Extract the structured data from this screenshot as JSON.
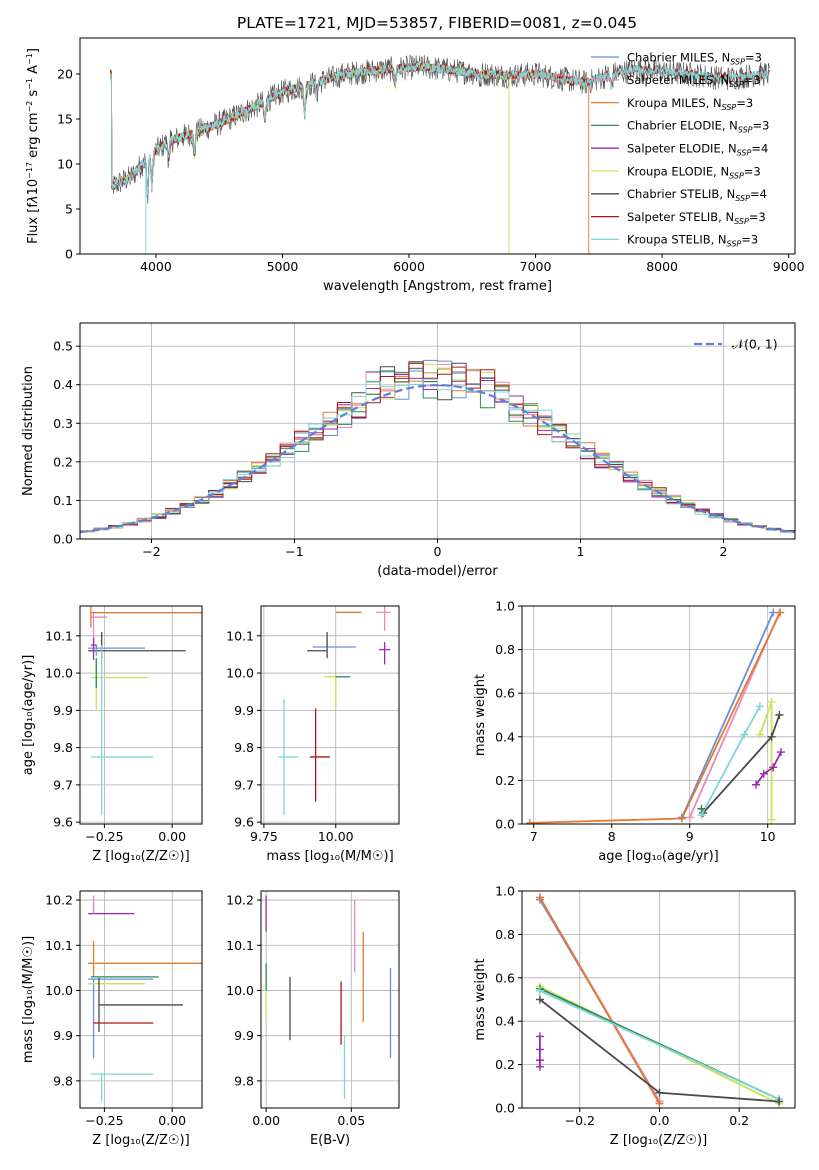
{
  "title": "PLATE=1721, MJD=53857, FIBERID=0081, z=0.045",
  "colors": {
    "Chabrier MILES": "#6a8fd6",
    "Salpeter MILES": "#e98ab9",
    "Kroupa MILES": "#e07b30",
    "Chabrier ELODIE": "#2f8a5a",
    "Salpeter ELODIE": "#9a2bb0",
    "Kroupa ELODIE": "#c9e35a",
    "Chabrier STELIB": "#4a4a4a",
    "Salpeter STELIB": "#b01515",
    "Kroupa STELIB": "#7fd6d6"
  },
  "chart_data": [
    {
      "id": "spectrum",
      "type": "line",
      "xlabel": "wavelength [Angstrom, rest frame]",
      "ylabel_html": "Flux [f<tspan font-style='italic'>λ</tspan>10<tspan dy='-5' font-size='8'>−17</tspan><tspan dy='5'> erg cm</tspan><tspan dy='-5' font-size='8'>−2</tspan><tspan dy='5'> s</tspan><tspan dy='-5' font-size='8'>−1</tspan><tspan dy='5'> A</tspan><tspan dy='-5' font-size='8'>−1</tspan><tspan dy='5'>]</tspan>",
      "xlim": [
        3400,
        9050
      ],
      "ylim": [
        0,
        24
      ],
      "xticks": [
        4000,
        5000,
        6000,
        7000,
        8000,
        9000
      ],
      "yticks": [
        0,
        5,
        10,
        15,
        20
      ],
      "series": [
        {
          "name": "Chabrier MILES",
          "label": "Chabrier MILES, N",
          "nssp": "3"
        },
        {
          "name": "Salpeter MILES",
          "label": "Salpeter MILES, N",
          "nssp": "3"
        },
        {
          "name": "Kroupa MILES",
          "label": "Kroupa MILES, N",
          "nssp": "3"
        },
        {
          "name": "Chabrier ELODIE",
          "label": "Chabrier ELODIE, N",
          "nssp": "3"
        },
        {
          "name": "Salpeter ELODIE",
          "label": "Salpeter ELODIE, N",
          "nssp": "4"
        },
        {
          "name": "Kroupa ELODIE",
          "label": "Kroupa ELODIE, N",
          "nssp": "3"
        },
        {
          "name": "Chabrier STELIB",
          "label": "Chabrier STELIB, N",
          "nssp": "4"
        },
        {
          "name": "Salpeter STELIB",
          "label": "Salpeter STELIB, N",
          "nssp": "3"
        },
        {
          "name": "Kroupa STELIB",
          "label": "Kroupa STELIB, N",
          "nssp": "3"
        }
      ],
      "continuum": [
        [
          3650,
          7.5
        ],
        [
          3800,
          8.5
        ],
        [
          3950,
          11
        ],
        [
          4100,
          12.5
        ],
        [
          4300,
          13.5
        ],
        [
          4500,
          14.5
        ],
        [
          4800,
          16.5
        ],
        [
          5000,
          18
        ],
        [
          5200,
          18.8
        ],
        [
          5500,
          20
        ],
        [
          5800,
          20.5
        ],
        [
          6100,
          20.8
        ],
        [
          6400,
          20.3
        ],
        [
          6600,
          20
        ],
        [
          6800,
          19.8
        ],
        [
          7000,
          20
        ],
        [
          7200,
          19.5
        ],
        [
          7400,
          19
        ],
        [
          7600,
          20
        ],
        [
          7800,
          20.5
        ],
        [
          8200,
          20
        ],
        [
          8500,
          19.5
        ],
        [
          8800,
          20
        ]
      ],
      "drops": [
        {
          "series": "Kroupa MILES",
          "x": 7420
        },
        {
          "series": "Kroupa ELODIE",
          "x": 6790
        },
        {
          "series": "Kroupa STELIB",
          "x": 3920
        }
      ]
    },
    {
      "id": "residuals",
      "type": "histogram",
      "xlabel": "(data-model)/error",
      "ylabel": "Normed distribution",
      "xlim": [
        -2.5,
        2.5
      ],
      "ylim": [
        0,
        0.56
      ],
      "xticks": [
        -2,
        -1,
        0,
        1,
        2
      ],
      "yticks": [
        0.0,
        0.1,
        0.2,
        0.3,
        0.4,
        0.5
      ],
      "legend": "𝒩(0, 1)",
      "bin_width": 0.1,
      "reference": {
        "name": "𝒩(0, 1)",
        "mu": 0,
        "sigma": 1
      }
    },
    {
      "id": "age-vs-Z",
      "type": "scatter",
      "xlabel": "Z [log₁₀(Z/Z☉)]",
      "ylabel": "age  [log₁₀(age/yr)]",
      "xlim": [
        -0.34,
        0.11
      ],
      "ylim": [
        9.595,
        10.18
      ],
      "xticks": [
        -0.25,
        0.0
      ],
      "yticks": [
        9.6,
        9.7,
        9.8,
        9.9,
        10.0,
        10.1
      ],
      "points": [
        {
          "series": "Kroupa MILES",
          "x": -0.3,
          "y": 10.162,
          "xerr": [
            0.0,
            0.41
          ],
          "yerr": [
            0.04,
            0.02
          ]
        },
        {
          "series": "Salpeter MILES",
          "x": -0.29,
          "y": 10.15,
          "xerr": [
            0.01,
            0.05
          ],
          "yerr": [
            0.07,
            0.01
          ]
        },
        {
          "series": "Chabrier STELIB",
          "x": -0.26,
          "y": 10.06,
          "xerr": [
            0.05,
            0.31
          ],
          "yerr": [
            0.02,
            0.05
          ]
        },
        {
          "series": "Chabrier MILES",
          "x": -0.28,
          "y": 10.067,
          "xerr": [
            0.03,
            0.18
          ],
          "yerr": [
            0.02,
            0.01
          ]
        },
        {
          "series": "Salpeter ELODIE",
          "x": -0.29,
          "y": 10.075,
          "xerr": [
            0.01,
            0.01
          ],
          "yerr": [
            0.04,
            0.02
          ]
        },
        {
          "series": "Kroupa ELODIE",
          "x": -0.28,
          "y": 9.988,
          "xerr": [
            0.02,
            0.19
          ],
          "yerr": [
            0.09,
            0.04
          ]
        },
        {
          "series": "Chabrier ELODIE",
          "x": -0.28,
          "y": 10.0,
          "xerr": [
            0.0,
            0.0
          ],
          "yerr": [
            0.04,
            0.04
          ]
        },
        {
          "series": "Kroupa STELIB",
          "x": -0.26,
          "y": 9.775,
          "xerr": [
            0.04,
            0.19
          ],
          "yerr": [
            0.155,
            0.3
          ]
        },
        {
          "series": "Salpeter STELIB",
          "x": -0.27,
          "y": 9.775,
          "xerr": [
            0.0,
            0.0
          ],
          "yerr": [
            0.0,
            0.0
          ]
        }
      ]
    },
    {
      "id": "age-vs-mass",
      "type": "scatter",
      "xlabel": "mass [log₁₀(M/M☉)]",
      "ylabel": "",
      "xlim": [
        9.74,
        10.22
      ],
      "ylim": [
        9.595,
        10.18
      ],
      "xticks": [
        9.75,
        10.0
      ],
      "yticks": [
        9.6,
        9.7,
        9.8,
        9.9,
        10.0,
        10.1
      ],
      "points": [
        {
          "series": "Kroupa MILES",
          "x": 10.06,
          "y": 10.163,
          "xerr": [
            0.06,
            0.03
          ],
          "yerr": [
            0.0,
            0.0
          ]
        },
        {
          "series": "Salpeter MILES",
          "x": 10.17,
          "y": 10.163,
          "xerr": [
            0.03,
            0.02
          ],
          "yerr": [
            0.05,
            0.02
          ]
        },
        {
          "series": "Chabrier MILES",
          "x": 10.03,
          "y": 10.07,
          "xerr": [
            0.11,
            0.04
          ],
          "yerr": [
            0.0,
            0.0
          ]
        },
        {
          "series": "Chabrier STELIB",
          "x": 9.97,
          "y": 10.06,
          "xerr": [
            0.07,
            0.0
          ],
          "yerr": [
            0.02,
            0.05
          ]
        },
        {
          "series": "Salpeter ELODIE",
          "x": 10.17,
          "y": 10.063,
          "xerr": [
            0.02,
            0.02
          ],
          "yerr": [
            0.04,
            0.02
          ]
        },
        {
          "series": "Kroupa ELODIE",
          "x": 10.0,
          "y": 9.99,
          "xerr": [
            0.04,
            0.02
          ],
          "yerr": [
            0.09,
            0.0
          ]
        },
        {
          "series": "Chabrier ELODIE",
          "x": 10.02,
          "y": 9.99,
          "xerr": [
            0.02,
            0.03
          ],
          "yerr": [
            0.0,
            0.0
          ]
        },
        {
          "series": "Kroupa STELIB",
          "x": 9.82,
          "y": 9.775,
          "xerr": [
            0.02,
            0.05
          ],
          "yerr": [
            0.155,
            0.155
          ]
        },
        {
          "series": "Salpeter STELIB",
          "x": 9.93,
          "y": 9.775,
          "xerr": [
            0.02,
            0.05
          ],
          "yerr": [
            0.12,
            0.13
          ]
        }
      ]
    },
    {
      "id": "weight-vs-age",
      "type": "line",
      "xlabel": "age  [log₁₀(age/yr)]",
      "ylabel": "mass weight",
      "xlim": [
        6.85,
        10.35
      ],
      "ylim": [
        0,
        1.0
      ],
      "xticks": [
        7,
        8,
        9,
        10
      ],
      "yticks": [
        0.0,
        0.2,
        0.4,
        0.6,
        0.8,
        1.0
      ],
      "series": [
        {
          "series": "Chabrier MILES",
          "x": [
            8.9,
            10.07
          ],
          "y": [
            0.03,
            0.97
          ]
        },
        {
          "series": "Salpeter MILES",
          "x": [
            9.0,
            10.15
          ],
          "y": [
            0.03,
            0.97
          ]
        },
        {
          "series": "Kroupa MILES",
          "x": [
            6.95,
            8.9,
            10.16
          ],
          "y": [
            0.005,
            0.025,
            0.97
          ]
        },
        {
          "series": "Kroupa ELODIE",
          "x": [
            9.9,
            10.05,
            10.05
          ],
          "y": [
            0.41,
            0.56,
            0.02
          ]
        },
        {
          "series": "Salpeter ELODIE",
          "x": [
            9.85,
            9.95,
            10.07,
            10.17
          ],
          "y": [
            0.18,
            0.23,
            0.26,
            0.33
          ]
        },
        {
          "series": "Chabrier STELIB",
          "x": [
            9.17,
            10.05,
            10.15
          ],
          "y": [
            0.05,
            0.4,
            0.5
          ]
        },
        {
          "series": "Kroupa STELIB",
          "x": [
            9.15,
            9.7,
            9.9
          ],
          "y": [
            0.04,
            0.41,
            0.54
          ]
        },
        {
          "series": "Chabrier ELODIE",
          "x": [
            9.15
          ],
          "y": [
            0.07
          ]
        }
      ]
    },
    {
      "id": "mass-vs-Z",
      "type": "scatter",
      "xlabel": "Z [log₁₀(Z/Z☉)]",
      "ylabel": "mass [log₁₀(M/M☉)]",
      "xlim": [
        -0.34,
        0.11
      ],
      "ylim": [
        9.74,
        10.22
      ],
      "xticks": [
        -0.25,
        0.0
      ],
      "yticks": [
        9.8,
        9.9,
        10.0,
        10.1,
        10.2
      ],
      "points": [
        {
          "series": "Salpeter ELODIE",
          "x": -0.29,
          "y": 10.17,
          "xerr": [
            0.02,
            0.15
          ],
          "yerr": [
            0.0,
            0.02
          ]
        },
        {
          "series": "Salpeter MILES",
          "x": -0.29,
          "y": 10.17,
          "xerr": [
            0.0,
            0.0
          ],
          "yerr": [
            0.0,
            0.04
          ]
        },
        {
          "series": "Kroupa MILES",
          "x": -0.29,
          "y": 10.06,
          "xerr": [
            0.02,
            0.41
          ],
          "yerr": [
            0.03,
            0.05
          ]
        },
        {
          "series": "Chabrier ELODIE",
          "x": -0.3,
          "y": 10.03,
          "xerr": [
            0.0,
            0.25
          ],
          "yerr": [
            0.0,
            0.0
          ]
        },
        {
          "series": "Chabrier MILES",
          "x": -0.29,
          "y": 10.025,
          "xerr": [
            0.02,
            0.22
          ],
          "yerr": [
            0.175,
            0.0
          ]
        },
        {
          "series": "Kroupa ELODIE",
          "x": -0.29,
          "y": 10.015,
          "xerr": [
            0.02,
            0.19
          ],
          "yerr": [
            0.0,
            0.0
          ]
        },
        {
          "series": "Chabrier STELIB",
          "x": -0.27,
          "y": 9.968,
          "xerr": [
            0.0,
            0.31
          ],
          "yerr": [
            0.06,
            0.06
          ]
        },
        {
          "series": "Salpeter STELIB",
          "x": -0.29,
          "y": 9.928,
          "xerr": [
            0.0,
            0.22
          ],
          "yerr": [
            0.0,
            0.0
          ]
        },
        {
          "series": "Kroupa STELIB",
          "x": -0.26,
          "y": 9.815,
          "xerr": [
            0.04,
            0.19
          ],
          "yerr": [
            0.06,
            0.0
          ]
        }
      ]
    },
    {
      "id": "mass-vs-EBV",
      "type": "scatter",
      "xlabel": "E(B-V)",
      "ylabel": "",
      "xlim": [
        -0.003,
        0.078
      ],
      "ylim": [
        9.74,
        10.22
      ],
      "xticks": [
        0.0,
        0.05
      ],
      "yticks": [
        9.8,
        9.9,
        10.0,
        10.1,
        10.2
      ],
      "points": [
        {
          "series": "Salpeter ELODIE",
          "x": 0.0,
          "y": 10.17,
          "xerr": [
            0,
            0
          ],
          "yerr": [
            0.04,
            0.04
          ]
        },
        {
          "series": "Kroupa ELODIE",
          "x": 0.0,
          "y": 10.0,
          "xerr": [
            0,
            0
          ],
          "yerr": [
            0.06,
            0.06
          ]
        },
        {
          "series": "Chabrier ELODIE",
          "x": 0.0,
          "y": 10.03,
          "xerr": [
            0,
            0
          ],
          "yerr": [
            0.03,
            0.03
          ]
        },
        {
          "series": "Chabrier STELIB",
          "x": 0.014,
          "y": 9.96,
          "xerr": [
            0,
            0
          ],
          "yerr": [
            0.07,
            0.07
          ]
        },
        {
          "series": "Salpeter STELIB",
          "x": 0.044,
          "y": 9.95,
          "xerr": [
            0,
            0
          ],
          "yerr": [
            0.07,
            0.07
          ]
        },
        {
          "series": "Kroupa STELIB",
          "x": 0.046,
          "y": 9.83,
          "xerr": [
            0,
            0
          ],
          "yerr": [
            0.07,
            0.07
          ]
        },
        {
          "series": "Salpeter MILES",
          "x": 0.052,
          "y": 10.12,
          "xerr": [
            0,
            0
          ],
          "yerr": [
            0.08,
            0.08
          ]
        },
        {
          "series": "Kroupa MILES",
          "x": 0.057,
          "y": 10.03,
          "xerr": [
            0,
            0
          ],
          "yerr": [
            0.1,
            0.1
          ]
        },
        {
          "series": "Chabrier MILES",
          "x": 0.073,
          "y": 9.95,
          "xerr": [
            0,
            0
          ],
          "yerr": [
            0.1,
            0.1
          ]
        }
      ]
    },
    {
      "id": "weight-vs-Z",
      "type": "line",
      "xlabel": "Z [log₁₀(Z/Z☉)]",
      "ylabel": "mass weight",
      "xlim": [
        -0.345,
        0.34
      ],
      "ylim": [
        0,
        1.0
      ],
      "xticks": [
        -0.2,
        0.0,
        0.2
      ],
      "yticks": [
        0.0,
        0.2,
        0.4,
        0.6,
        0.8,
        1.0
      ],
      "series": [
        {
          "series": "Chabrier MILES",
          "x": [
            -0.3,
            0.0
          ],
          "y": [
            0.96,
            0.03
          ]
        },
        {
          "series": "Salpeter MILES",
          "x": [
            -0.3,
            0.0
          ],
          "y": [
            0.97,
            0.03
          ]
        },
        {
          "series": "Kroupa MILES",
          "x": [
            -0.3,
            0.0
          ],
          "y": [
            0.97,
            0.02
          ]
        },
        {
          "series": "Kroupa ELODIE",
          "x": [
            -0.3,
            0.3
          ],
          "y": [
            0.56,
            0.02
          ]
        },
        {
          "series": "Chabrier ELODIE",
          "x": [
            -0.3,
            0.3
          ],
          "y": [
            0.55,
            0.04
          ]
        },
        {
          "series": "Kroupa STELIB",
          "x": [
            -0.3,
            0.3
          ],
          "y": [
            0.54,
            0.04
          ]
        },
        {
          "series": "Chabrier STELIB",
          "x": [
            -0.3,
            0.0,
            0.3
          ],
          "y": [
            0.5,
            0.07,
            0.03
          ]
        },
        {
          "series": "Salpeter ELODIE",
          "x": [
            -0.3,
            -0.3,
            -0.3,
            -0.3
          ],
          "y": [
            0.19,
            0.22,
            0.27,
            0.33
          ]
        }
      ]
    }
  ]
}
